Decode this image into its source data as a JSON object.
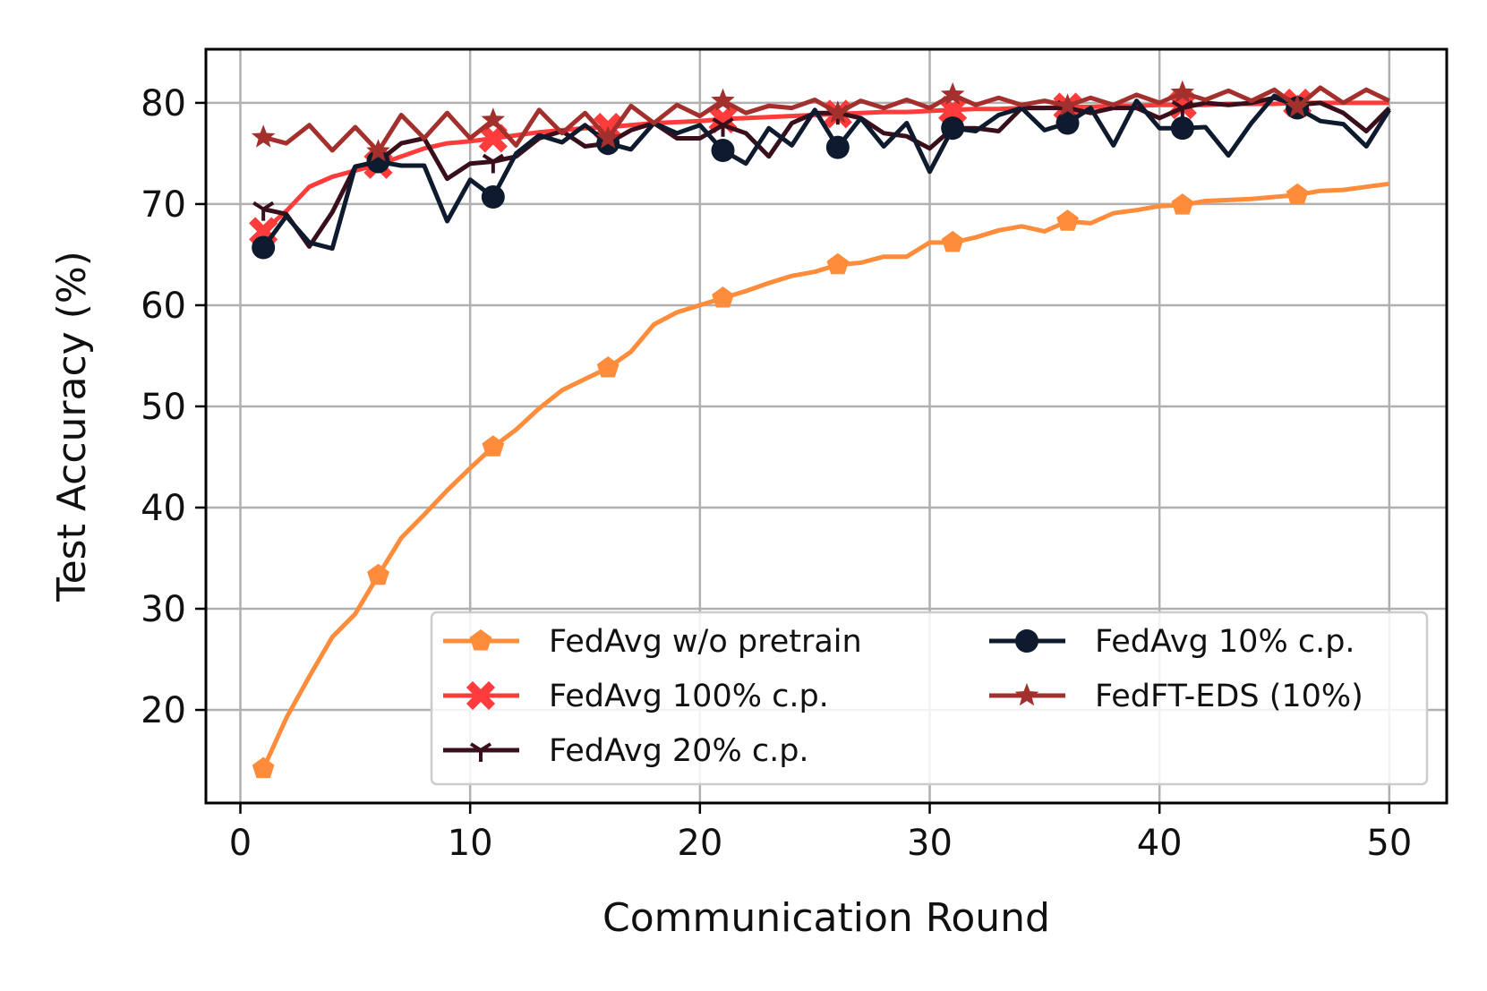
{
  "chart_data": {
    "type": "line",
    "title": "",
    "xlabel": "Communication Round",
    "ylabel": "Test Accuracy (%)",
    "xlim": [
      -1.5,
      52.5
    ],
    "ylim": [
      10.8,
      85.3
    ],
    "xticks": [
      0,
      10,
      20,
      30,
      40,
      50
    ],
    "yticks": [
      20,
      30,
      40,
      50,
      60,
      70,
      80
    ],
    "grid": true,
    "legend_position": "lower-right",
    "legend_columns": 2,
    "markevery": 5,
    "x": [
      1,
      2,
      3,
      4,
      5,
      6,
      7,
      8,
      9,
      10,
      11,
      12,
      13,
      14,
      15,
      16,
      17,
      18,
      19,
      20,
      21,
      22,
      23,
      24,
      25,
      26,
      27,
      28,
      29,
      30,
      31,
      32,
      33,
      34,
      35,
      36,
      37,
      38,
      39,
      40,
      41,
      42,
      43,
      44,
      45,
      46,
      47,
      48,
      49,
      50
    ],
    "series": [
      {
        "name": "FedAvg w/o pretrain",
        "color": "#FF8C3A",
        "marker": "pentagon",
        "values": [
          14.2,
          19.2,
          23.3,
          27.2,
          29.5,
          33.3,
          37.0,
          39.3,
          41.7,
          43.9,
          46.0,
          47.7,
          49.8,
          51.6,
          52.7,
          53.8,
          55.4,
          58.1,
          59.3,
          60.0,
          60.7,
          61.4,
          62.2,
          62.9,
          63.3,
          64.0,
          64.2,
          64.8,
          64.8,
          66.2,
          66.2,
          66.7,
          67.4,
          67.8,
          67.3,
          68.3,
          68.1,
          69.1,
          69.4,
          69.8,
          69.9,
          70.3,
          70.4,
          70.5,
          70.7,
          70.9,
          71.3,
          71.4,
          71.7,
          72.0
        ]
      },
      {
        "name": "FedAvg 100% c.p.",
        "color": "#FF3B3B",
        "marker": "x-filled",
        "values": [
          67.3,
          69.3,
          71.7,
          72.7,
          73.3,
          73.9,
          74.7,
          75.5,
          76.0,
          76.2,
          76.5,
          76.8,
          77.1,
          77.3,
          77.5,
          77.6,
          77.8,
          78.0,
          78.1,
          78.2,
          78.4,
          78.5,
          78.6,
          78.7,
          78.8,
          78.9,
          79.0,
          79.1,
          79.1,
          79.2,
          79.3,
          79.4,
          79.4,
          79.5,
          79.5,
          79.6,
          79.6,
          79.7,
          79.7,
          79.8,
          79.8,
          79.8,
          79.9,
          79.9,
          79.9,
          80.0,
          80.0,
          80.0,
          80.0,
          80.0
        ]
      },
      {
        "name": "FedAvg 20% c.p.",
        "color": "#3A0F1C",
        "marker": "tri-down",
        "values": [
          69.5,
          69.0,
          65.8,
          69.2,
          73.7,
          74.2,
          76.0,
          76.5,
          72.5,
          74.0,
          74.2,
          74.7,
          76.5,
          77.2,
          75.7,
          76.0,
          77.3,
          78.0,
          76.5,
          76.5,
          77.8,
          77.0,
          74.7,
          78.0,
          79.0,
          79.0,
          78.5,
          77.0,
          76.7,
          75.5,
          77.5,
          77.5,
          77.2,
          79.5,
          79.5,
          79.5,
          79.0,
          79.5,
          79.5,
          78.5,
          79.5,
          80.0,
          79.8,
          80.0,
          80.5,
          79.8,
          80.0,
          79.0,
          77.2,
          79.5
        ]
      },
      {
        "name": "FedAvg 10% c.p.",
        "color": "#0E1A2E",
        "marker": "circle",
        "values": [
          65.7,
          68.8,
          66.2,
          65.6,
          73.7,
          74.2,
          73.8,
          73.8,
          68.3,
          72.4,
          70.7,
          75.0,
          76.8,
          76.1,
          77.8,
          76.0,
          75.4,
          78.0,
          77.0,
          77.8,
          75.3,
          74.0,
          77.5,
          75.8,
          79.3,
          75.6,
          78.5,
          75.7,
          78.0,
          73.2,
          77.5,
          77.2,
          78.8,
          79.5,
          77.3,
          78.0,
          79.5,
          75.8,
          80.2,
          77.5,
          77.5,
          77.6,
          74.8,
          78.0,
          80.7,
          79.5,
          78.2,
          77.9,
          75.7,
          79.3
        ]
      },
      {
        "name": "FedFT-EDS (10%)",
        "color": "#A3302C",
        "marker": "star",
        "values": [
          76.6,
          76.0,
          77.8,
          75.3,
          77.6,
          75.2,
          78.8,
          76.5,
          79.0,
          76.5,
          78.3,
          75.8,
          79.3,
          77.0,
          79.0,
          76.5,
          79.7,
          78.0,
          79.8,
          78.7,
          80.2,
          79.0,
          79.7,
          79.5,
          80.3,
          79.0,
          80.2,
          79.5,
          80.3,
          79.5,
          80.8,
          79.8,
          80.5,
          79.8,
          80.2,
          79.7,
          80.5,
          79.8,
          80.8,
          80.0,
          81.0,
          80.3,
          81.2,
          80.2,
          81.3,
          79.6,
          81.5,
          80.0,
          81.3,
          80.2
        ]
      }
    ]
  }
}
